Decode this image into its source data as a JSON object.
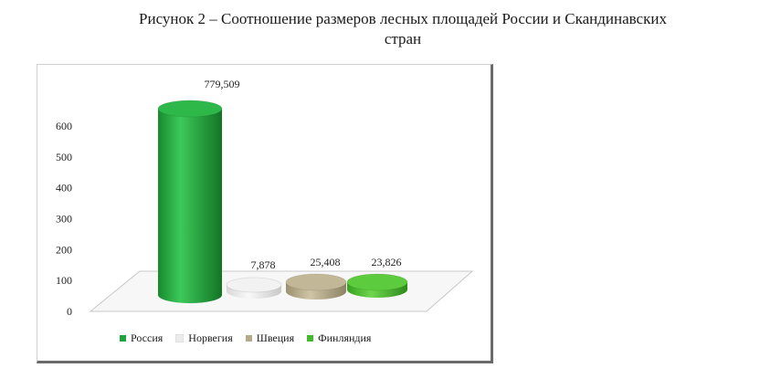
{
  "caption": {
    "line1": "Рисунок 2 – Соотношение размеров лесных площадей России и Скандинавских",
    "line2": "стран"
  },
  "chart_data": {
    "type": "bar",
    "style": "3d-cylinder",
    "categories": [
      "Россия",
      "Норвегия",
      "Швеция",
      "Финляндия"
    ],
    "values": [
      779509,
      7878,
      25408,
      23826
    ],
    "data_labels": [
      "779,509",
      "7,878",
      "25,408",
      "23,826"
    ],
    "colors": [
      "#1fa23a",
      "#ececec",
      "#b5aa8a",
      "#45b82e"
    ],
    "yticks": [
      "0",
      "100",
      "200",
      "300",
      "400",
      "500",
      "600"
    ],
    "ylim": [
      0,
      600
    ],
    "legend_position": "bottom",
    "grid": false
  }
}
